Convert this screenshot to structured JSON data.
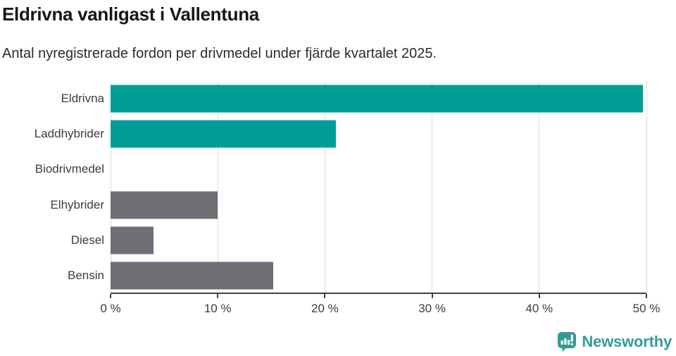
{
  "chart_data": {
    "type": "bar",
    "orientation": "horizontal",
    "title": "Eldrivna vanligast i Vallentuna",
    "subtitle": "Antal nyregistrerade fordon per drivmedel under fjärde kvartalet 2025.",
    "categories": [
      "Eldrivna",
      "Laddhybrider",
      "Biodrivmedel",
      "Elhybrider",
      "Diesel",
      "Bensin"
    ],
    "values": [
      49.7,
      21,
      0,
      10,
      4,
      15.2
    ],
    "unit": "%",
    "colors": [
      "#009E96",
      "#009E96",
      "#6E6E75",
      "#6E6E75",
      "#6E6E75",
      "#6E6E75"
    ],
    "highlight_color": "#009E96",
    "base_color": "#6E6E75",
    "xlabel": "",
    "ylabel": "",
    "xlim": [
      0,
      50
    ],
    "xticks": [
      0,
      10,
      20,
      30,
      40,
      50
    ],
    "xtick_labels": [
      "0 %",
      "10 %",
      "20 %",
      "30 %",
      "40 %",
      "50 %"
    ],
    "grid": "vertical-light",
    "gridline_color": "#dcdcdc",
    "axis_color": "#414141",
    "legend": "none"
  },
  "footer": {
    "brand": "Newsworthy",
    "brand_color": "#379B95",
    "logo_icon": "newsworthy-speech-bubble-bar-chart"
  }
}
